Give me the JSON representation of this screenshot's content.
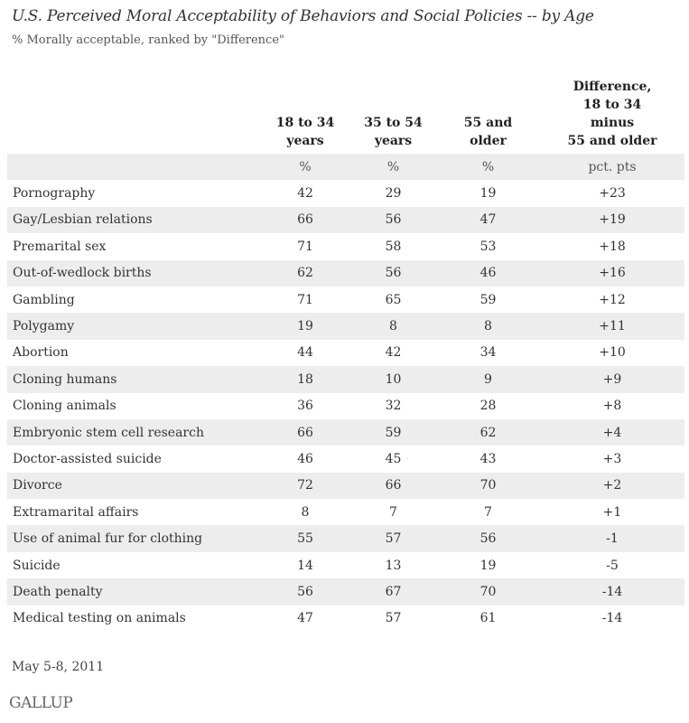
{
  "chart_data": {
    "type": "table",
    "title": "U.S. Perceived Moral Acceptability of Behaviors and Social Policies -- by Age",
    "subtitle": "% Morally acceptable, ranked by \"Difference\"",
    "columns": [
      "18 to 34 years",
      "35 to 54 years",
      "55 and older",
      "Difference, 18 to 34 minus 55 and older"
    ],
    "column_lines": [
      [
        "18 to 34",
        "years"
      ],
      [
        "35 to 54",
        "years"
      ],
      [
        "55 and",
        "older"
      ],
      [
        "Difference,",
        "18 to 34",
        "minus",
        "55 and older"
      ]
    ],
    "units": [
      "%",
      "%",
      "%",
      "pct. pts"
    ],
    "rows": [
      {
        "label": "Pornography",
        "values": [
          "42",
          "29",
          "19",
          "+23"
        ]
      },
      {
        "label": "Gay/Lesbian relations",
        "values": [
          "66",
          "56",
          "47",
          "+19"
        ]
      },
      {
        "label": "Premarital sex",
        "values": [
          "71",
          "58",
          "53",
          "+18"
        ]
      },
      {
        "label": "Out-of-wedlock births",
        "values": [
          "62",
          "56",
          "46",
          "+16"
        ]
      },
      {
        "label": "Gambling",
        "values": [
          "71",
          "65",
          "59",
          "+12"
        ]
      },
      {
        "label": "Polygamy",
        "values": [
          "19",
          "8",
          "8",
          "+11"
        ]
      },
      {
        "label": "Abortion",
        "values": [
          "44",
          "42",
          "34",
          "+10"
        ]
      },
      {
        "label": "Cloning humans",
        "values": [
          "18",
          "10",
          "9",
          "+9"
        ]
      },
      {
        "label": "Cloning animals",
        "values": [
          "36",
          "32",
          "28",
          "+8"
        ]
      },
      {
        "label": "Embryonic stem cell research",
        "values": [
          "66",
          "59",
          "62",
          "+4"
        ]
      },
      {
        "label": "Doctor-assisted suicide",
        "values": [
          "46",
          "45",
          "43",
          "+3"
        ]
      },
      {
        "label": "Divorce",
        "values": [
          "72",
          "66",
          "70",
          "+2"
        ]
      },
      {
        "label": "Extramarital affairs",
        "values": [
          "8",
          "7",
          "7",
          "+1"
        ]
      },
      {
        "label": "Use of animal fur for clothing",
        "values": [
          "55",
          "57",
          "56",
          "-1"
        ]
      },
      {
        "label": "Suicide",
        "values": [
          "14",
          "13",
          "19",
          "-5"
        ]
      },
      {
        "label": "Death penalty",
        "values": [
          "56",
          "67",
          "70",
          "-14"
        ]
      },
      {
        "label": "Medical testing on animals",
        "values": [
          "47",
          "57",
          "61",
          "-14"
        ]
      }
    ]
  },
  "footer": {
    "date": "May 5-8, 2011",
    "logo": "GALLUP"
  },
  "colors": {
    "shade": "#ededed",
    "text": "#333333"
  }
}
